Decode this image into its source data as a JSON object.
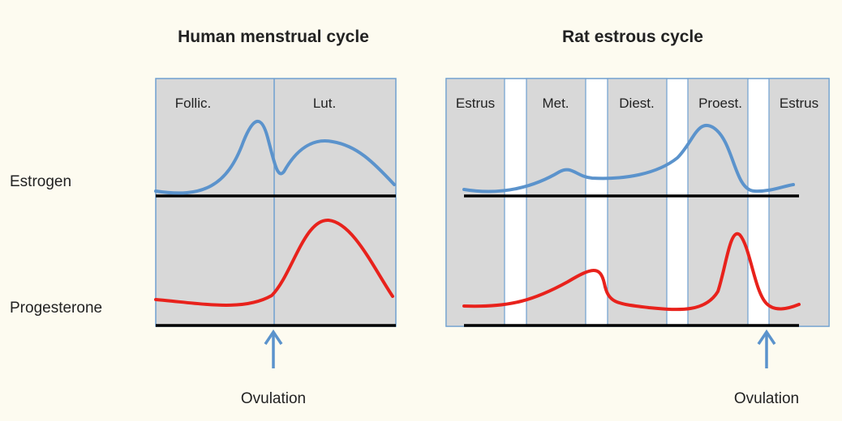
{
  "titles": [
    "Human menstrual cycle",
    "Rat estrous cycle"
  ],
  "human_phases": [
    "Follic.",
    "Lut."
  ],
  "rat_phases": [
    "Estrus",
    "Met.",
    "Diest.",
    "Proest.",
    "Estrus"
  ],
  "row_labels": [
    "Estrogen",
    "Progesterone"
  ],
  "ovulation_labels": [
    "Ovulation",
    "Ovulation"
  ]
}
